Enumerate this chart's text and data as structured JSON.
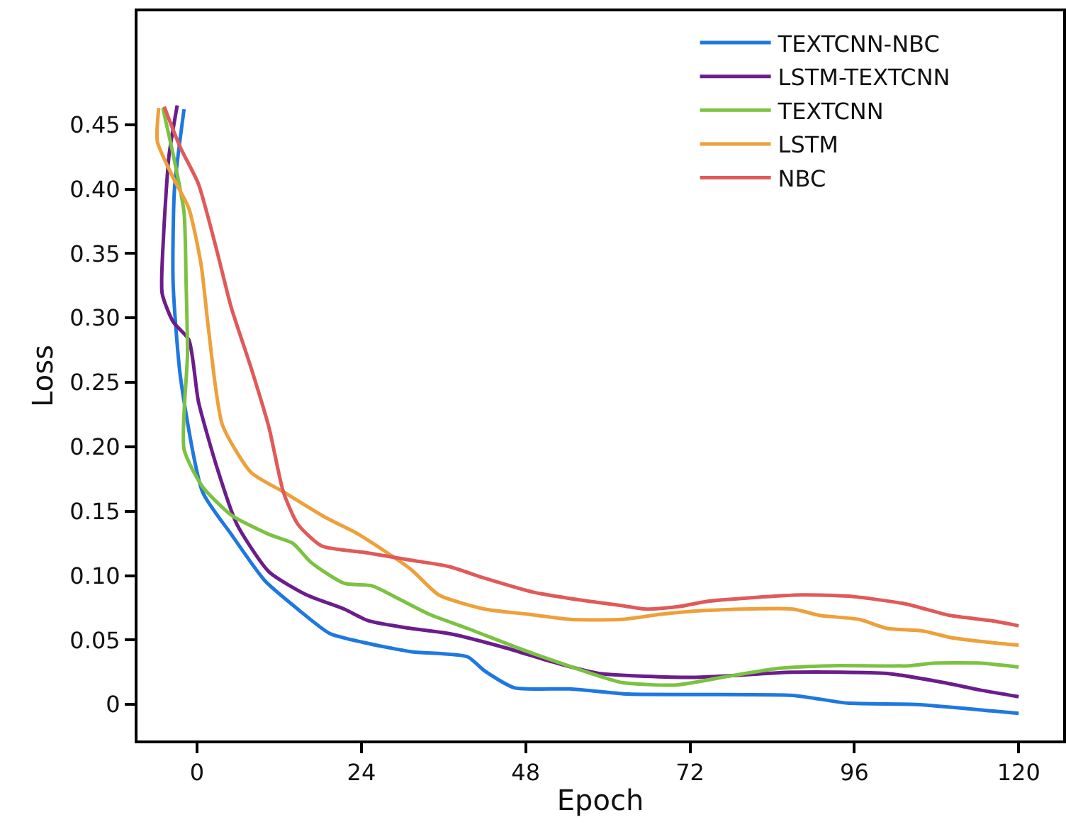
{
  "chart_data": {
    "type": "line",
    "xlabel": "Epoch",
    "ylabel": "Loss",
    "xlim": [
      -8.7,
      126.5
    ],
    "ylim": [
      -0.028,
      0.538
    ],
    "xticks": [
      0,
      24,
      48,
      72,
      96,
      120
    ],
    "yticks": [
      0,
      0.05,
      {
        "value": 0.1,
        "label": "0.10"
      },
      0.15,
      {
        "value": 0.2,
        "label": "0.20"
      },
      0.25,
      {
        "value": 0.3,
        "label": "0.30"
      },
      0.35,
      {
        "value": 0.4,
        "label": "0.40"
      },
      0.45
    ],
    "grid": false,
    "legend": "top right",
    "marker": "none",
    "line_style": "solid",
    "series": [
      {
        "name": "TEXTCNN-NBC",
        "color": "#1f78e0",
        "x": [
          -1.9,
          -3.3,
          -3.5,
          -2.4,
          0.8,
          5,
          9.9,
          14.7,
          19.4,
          24.4,
          31.2,
          39.5,
          42,
          46.3,
          54.5,
          63,
          87,
          95,
          105,
          116,
          120
        ],
        "values": [
          0.462,
          0.4,
          0.327,
          0.253,
          0.165,
          0.132,
          0.096,
          0.074,
          0.055,
          0.048,
          0.041,
          0.037,
          0.026,
          0.013,
          0.012,
          0.008,
          0.007,
          0.001,
          0,
          -0.005,
          -0.007
        ]
      },
      {
        "name": "LSTM-TEXTCNN",
        "color": "#6b1d8c",
        "x": [
          -2.9,
          -4.1,
          -4.9,
          -5.1,
          -3.5,
          -1.2,
          0.2,
          2.9,
          5.8,
          10.5,
          16,
          21.5,
          25,
          31.2,
          36.8,
          45,
          51.9,
          58.7,
          72.5,
          87,
          100.8,
          109,
          114.5,
          120
        ],
        "values": [
          0.465,
          0.426,
          0.363,
          0.319,
          0.297,
          0.283,
          0.235,
          0.184,
          0.14,
          0.103,
          0.085,
          0.074,
          0.065,
          0.059,
          0.055,
          0.044,
          0.033,
          0.024,
          0.021,
          0.025,
          0.024,
          0.017,
          0.011,
          0.006
        ]
      },
      {
        "name": "TEXTCNN",
        "color": "#7cc242",
        "x": [
          -5,
          -3.3,
          -1.9,
          -1.6,
          -1.4,
          -1.9,
          0.8,
          5,
          10.5,
          14,
          16.7,
          21.5,
          25.6,
          29.8,
          33.9,
          39.5,
          48.3,
          58.7,
          62,
          69.8,
          76.7,
          85,
          92.6,
          104,
          107.6,
          114.5,
          120
        ],
        "values": [
          0.463,
          0.422,
          0.382,
          0.327,
          0.272,
          0.198,
          0.169,
          0.147,
          0.132,
          0.125,
          0.11,
          0.094,
          0.092,
          0.081,
          0.07,
          0.059,
          0.041,
          0.022,
          0.017,
          0.015,
          0.021,
          0.028,
          0.03,
          0.03,
          0.032,
          0.032,
          0.029
        ]
      },
      {
        "name": "LSTM",
        "color": "#eea03a",
        "x": [
          -5.6,
          -5.8,
          -3.5,
          -1.2,
          0.6,
          1.7,
          3.7,
          7.9,
          12.6,
          18.8,
          23.6,
          31.2,
          35.3,
          42,
          48.3,
          54.5,
          62,
          67.8,
          74.6,
          87,
          91,
          96.7,
          100.8,
          106,
          110,
          116,
          120
        ],
        "values": [
          0.463,
          0.437,
          0.409,
          0.385,
          0.341,
          0.29,
          0.217,
          0.18,
          0.165,
          0.145,
          0.132,
          0.105,
          0.085,
          0.074,
          0.07,
          0.066,
          0.066,
          0.07,
          0.073,
          0.074,
          0.069,
          0.066,
          0.059,
          0.057,
          0.052,
          0.048,
          0.046
        ]
      },
      {
        "name": "NBC",
        "color": "#e05a5a",
        "x": [
          -4.8,
          -2.5,
          0.2,
          2.9,
          5,
          7.9,
          10.5,
          12.6,
          14.7,
          18.2,
          24.4,
          31.2,
          36.8,
          42,
          49.2,
          56,
          61.6,
          65.7,
          70.5,
          74.6,
          81.4,
          88.4,
          95.2,
          103.5,
          110,
          116,
          120
        ],
        "values": [
          0.464,
          0.433,
          0.404,
          0.352,
          0.308,
          0.261,
          0.215,
          0.165,
          0.14,
          0.123,
          0.118,
          0.112,
          0.107,
          0.098,
          0.087,
          0.081,
          0.077,
          0.074,
          0.076,
          0.08,
          0.083,
          0.085,
          0.084,
          0.078,
          0.069,
          0.065,
          0.061
        ]
      }
    ]
  }
}
